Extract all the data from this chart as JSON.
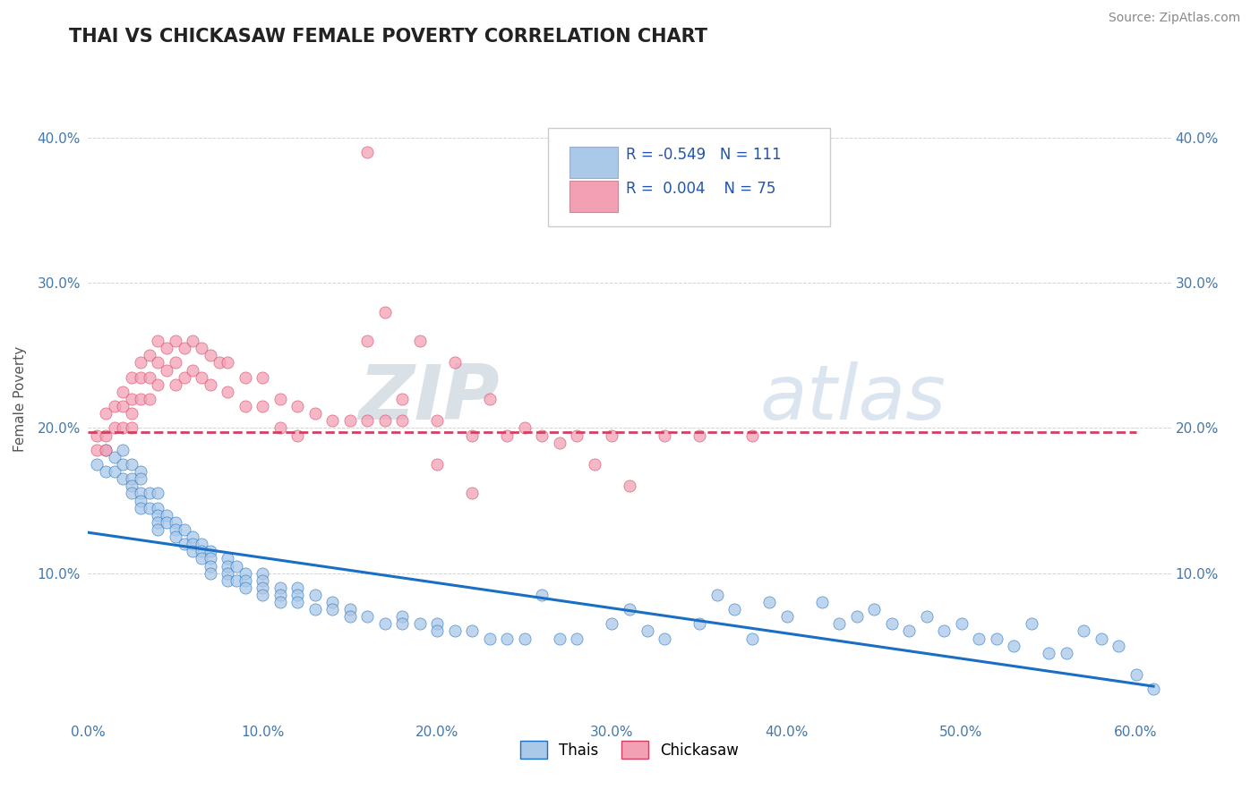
{
  "title": "THAI VS CHICKASAW FEMALE POVERTY CORRELATION CHART",
  "source": "Source: ZipAtlas.com",
  "ylabel": "Female Poverty",
  "xlim": [
    0.0,
    0.62
  ],
  "ylim": [
    0.0,
    0.44
  ],
  "xtick_labels": [
    "0.0%",
    "10.0%",
    "20.0%",
    "30.0%",
    "40.0%",
    "50.0%",
    "60.0%"
  ],
  "xtick_vals": [
    0.0,
    0.1,
    0.2,
    0.3,
    0.4,
    0.5,
    0.6
  ],
  "ytick_labels": [
    "10.0%",
    "20.0%",
    "30.0%",
    "40.0%"
  ],
  "ytick_vals": [
    0.1,
    0.2,
    0.3,
    0.4
  ],
  "legend_r_thai": "-0.549",
  "legend_n_thai": "111",
  "legend_r_chickasaw": "0.004",
  "legend_n_chickasaw": "75",
  "thai_color": "#aac8e8",
  "chickasaw_color": "#f4a0b4",
  "thai_line_color": "#1a6fc4",
  "chickasaw_line_color": "#d04060",
  "background_color": "#ffffff",
  "grid_color": "#c8c8c8",
  "watermark_color": "#dde8f0",
  "thai_scatter_x": [
    0.005,
    0.01,
    0.01,
    0.015,
    0.015,
    0.02,
    0.02,
    0.02,
    0.025,
    0.025,
    0.025,
    0.025,
    0.03,
    0.03,
    0.03,
    0.03,
    0.03,
    0.035,
    0.035,
    0.04,
    0.04,
    0.04,
    0.04,
    0.04,
    0.045,
    0.045,
    0.05,
    0.05,
    0.05,
    0.055,
    0.055,
    0.06,
    0.06,
    0.06,
    0.065,
    0.065,
    0.065,
    0.07,
    0.07,
    0.07,
    0.07,
    0.08,
    0.08,
    0.08,
    0.08,
    0.085,
    0.085,
    0.09,
    0.09,
    0.09,
    0.1,
    0.1,
    0.1,
    0.1,
    0.11,
    0.11,
    0.11,
    0.12,
    0.12,
    0.12,
    0.13,
    0.13,
    0.14,
    0.14,
    0.15,
    0.15,
    0.16,
    0.17,
    0.18,
    0.18,
    0.19,
    0.2,
    0.2,
    0.21,
    0.22,
    0.23,
    0.24,
    0.25,
    0.26,
    0.27,
    0.28,
    0.3,
    0.32,
    0.33,
    0.35,
    0.37,
    0.38,
    0.4,
    0.42,
    0.43,
    0.45,
    0.47,
    0.48,
    0.5,
    0.52,
    0.54,
    0.55,
    0.57,
    0.58,
    0.59,
    0.6,
    0.44,
    0.46,
    0.49,
    0.51,
    0.53,
    0.56,
    0.61,
    0.39,
    0.36,
    0.31
  ],
  "thai_scatter_y": [
    0.175,
    0.185,
    0.17,
    0.18,
    0.17,
    0.185,
    0.175,
    0.165,
    0.175,
    0.165,
    0.16,
    0.155,
    0.17,
    0.165,
    0.155,
    0.15,
    0.145,
    0.155,
    0.145,
    0.155,
    0.145,
    0.14,
    0.135,
    0.13,
    0.14,
    0.135,
    0.135,
    0.13,
    0.125,
    0.13,
    0.12,
    0.125,
    0.12,
    0.115,
    0.12,
    0.115,
    0.11,
    0.115,
    0.11,
    0.105,
    0.1,
    0.11,
    0.105,
    0.1,
    0.095,
    0.105,
    0.095,
    0.1,
    0.095,
    0.09,
    0.1,
    0.095,
    0.09,
    0.085,
    0.09,
    0.085,
    0.08,
    0.09,
    0.085,
    0.08,
    0.085,
    0.075,
    0.08,
    0.075,
    0.075,
    0.07,
    0.07,
    0.065,
    0.07,
    0.065,
    0.065,
    0.065,
    0.06,
    0.06,
    0.06,
    0.055,
    0.055,
    0.055,
    0.085,
    0.055,
    0.055,
    0.065,
    0.06,
    0.055,
    0.065,
    0.075,
    0.055,
    0.07,
    0.08,
    0.065,
    0.075,
    0.06,
    0.07,
    0.065,
    0.055,
    0.065,
    0.045,
    0.06,
    0.055,
    0.05,
    0.03,
    0.07,
    0.065,
    0.06,
    0.055,
    0.05,
    0.045,
    0.02,
    0.08,
    0.085,
    0.075
  ],
  "chickasaw_scatter_x": [
    0.005,
    0.005,
    0.01,
    0.01,
    0.01,
    0.015,
    0.015,
    0.02,
    0.02,
    0.02,
    0.025,
    0.025,
    0.025,
    0.025,
    0.03,
    0.03,
    0.03,
    0.035,
    0.035,
    0.035,
    0.04,
    0.04,
    0.04,
    0.045,
    0.045,
    0.05,
    0.05,
    0.05,
    0.055,
    0.055,
    0.06,
    0.06,
    0.065,
    0.065,
    0.07,
    0.07,
    0.075,
    0.08,
    0.08,
    0.09,
    0.09,
    0.1,
    0.1,
    0.11,
    0.11,
    0.12,
    0.12,
    0.13,
    0.14,
    0.15,
    0.16,
    0.17,
    0.18,
    0.2,
    0.22,
    0.24,
    0.26,
    0.28,
    0.3,
    0.33,
    0.35,
    0.38,
    0.2,
    0.22,
    0.16,
    0.16,
    0.17,
    0.18,
    0.19,
    0.21,
    0.23,
    0.25,
    0.27,
    0.29,
    0.31
  ],
  "chickasaw_scatter_y": [
    0.195,
    0.185,
    0.21,
    0.195,
    0.185,
    0.215,
    0.2,
    0.225,
    0.215,
    0.2,
    0.235,
    0.22,
    0.21,
    0.2,
    0.245,
    0.235,
    0.22,
    0.25,
    0.235,
    0.22,
    0.26,
    0.245,
    0.23,
    0.255,
    0.24,
    0.26,
    0.245,
    0.23,
    0.255,
    0.235,
    0.26,
    0.24,
    0.255,
    0.235,
    0.25,
    0.23,
    0.245,
    0.245,
    0.225,
    0.235,
    0.215,
    0.235,
    0.215,
    0.22,
    0.2,
    0.215,
    0.195,
    0.21,
    0.205,
    0.205,
    0.205,
    0.205,
    0.205,
    0.205,
    0.195,
    0.195,
    0.195,
    0.195,
    0.195,
    0.195,
    0.195,
    0.195,
    0.175,
    0.155,
    0.26,
    0.39,
    0.28,
    0.22,
    0.26,
    0.245,
    0.22,
    0.2,
    0.19,
    0.175,
    0.16
  ],
  "thai_line_x": [
    0.0,
    0.61
  ],
  "thai_line_y": [
    0.128,
    0.022
  ],
  "chickasaw_line_x": [
    0.0,
    0.6
  ],
  "chickasaw_line_y": [
    0.197,
    0.197
  ]
}
